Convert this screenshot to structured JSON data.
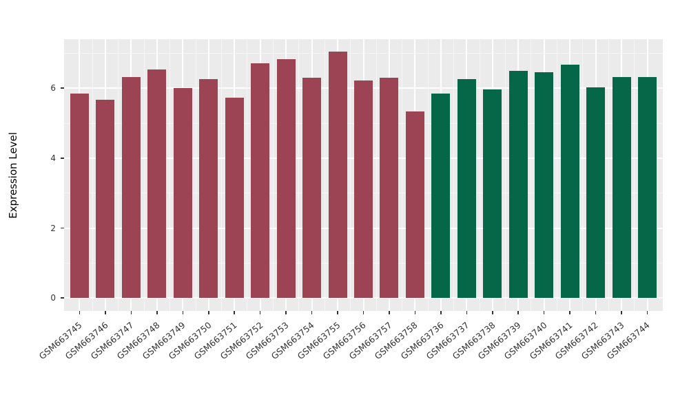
{
  "chart_data": {
    "type": "bar",
    "title": "",
    "xlabel": "",
    "ylabel": "Expression Level",
    "categories": [
      "GSM663745",
      "GSM663746",
      "GSM663747",
      "GSM663748",
      "GSM663749",
      "GSM663750",
      "GSM663751",
      "GSM663752",
      "GSM663753",
      "GSM663754",
      "GSM663755",
      "GSM663756",
      "GSM663757",
      "GSM663758",
      "GSM663736",
      "GSM663737",
      "GSM663738",
      "GSM663739",
      "GSM663740",
      "GSM663741",
      "GSM663742",
      "GSM663743",
      "GSM663744"
    ],
    "values": [
      5.85,
      5.67,
      6.31,
      6.54,
      6.0,
      6.26,
      5.73,
      6.72,
      6.83,
      6.3,
      7.05,
      6.21,
      6.29,
      5.34,
      5.85,
      6.26,
      5.96,
      6.49,
      6.46,
      6.67,
      6.02,
      6.31,
      6.32
    ],
    "bar_groups": [
      "maroon",
      "maroon",
      "maroon",
      "maroon",
      "maroon",
      "maroon",
      "maroon",
      "maroon",
      "maroon",
      "maroon",
      "maroon",
      "maroon",
      "maroon",
      "maroon",
      "green",
      "green",
      "green",
      "green",
      "green",
      "green",
      "green",
      "green",
      "green"
    ],
    "group_colors": {
      "maroon": "#9C4453",
      "green": "#066748"
    },
    "yticks": [
      0,
      2,
      4,
      6
    ],
    "ylim": [
      -0.37,
      7.4
    ],
    "x_tick_rotation_deg": 40,
    "legend_position": "none",
    "grid": "horizontal and vertical, major white + minor translucent white",
    "panel_bg": "#EBEBEB",
    "grid_major_color": "#FFFFFF",
    "grid_minor_color": "rgba(255,255,255,0.55)",
    "tick_label_color": "#333333",
    "axis_title_color": "#000000"
  }
}
